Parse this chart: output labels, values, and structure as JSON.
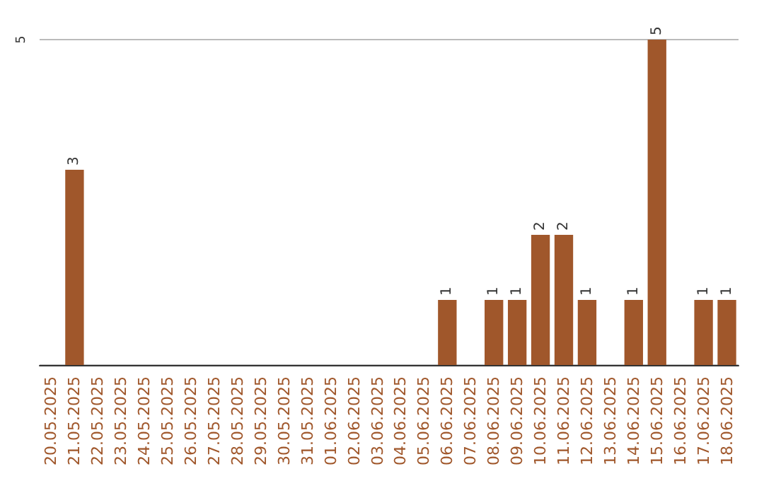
{
  "chart_data": {
    "type": "bar",
    "categories": [
      "20.05.2025",
      "21.05.2025",
      "22.05.2025",
      "23.05.2025",
      "24.05.2025",
      "25.05.2025",
      "26.05.2025",
      "27.05.2025",
      "28.05.2025",
      "29.05.2025",
      "30.05.2025",
      "31.05.2025",
      "01.06.2025",
      "02.06.2025",
      "03.06.2025",
      "04.06.2025",
      "05.06.2025",
      "06.06.2025",
      "07.06.2025",
      "08.06.2025",
      "09.06.2025",
      "10.06.2025",
      "11.06.2025",
      "12.06.2025",
      "13.06.2025",
      "14.06.2025",
      "15.06.2025",
      "16.06.2025",
      "17.06.2025",
      "18.06.2025"
    ],
    "values": [
      0,
      3,
      0,
      0,
      0,
      0,
      0,
      0,
      0,
      0,
      0,
      0,
      0,
      0,
      0,
      0,
      0,
      1,
      0,
      1,
      1,
      2,
      2,
      1,
      0,
      1,
      5,
      0,
      1,
      1
    ],
    "value_labels": [
      null,
      "3",
      null,
      null,
      null,
      null,
      null,
      null,
      null,
      null,
      null,
      null,
      null,
      null,
      null,
      null,
      null,
      "1",
      null,
      "1",
      "1",
      "2",
      "2",
      "1",
      null,
      "1",
      "5",
      null,
      "1",
      "1"
    ],
    "color": "#a0572b",
    "ylim": [
      0,
      5
    ],
    "yticks": [
      {
        "value": 0,
        "label": null
      },
      5
    ],
    "grid": "y"
  }
}
